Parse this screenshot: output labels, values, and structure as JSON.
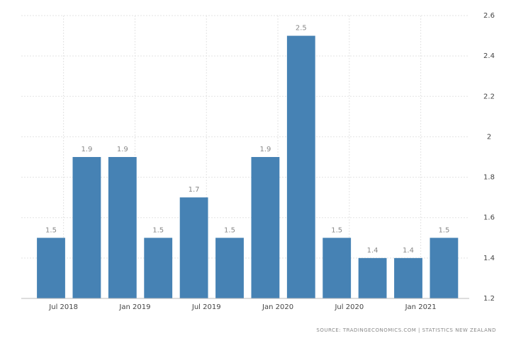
{
  "chart_data": {
    "type": "bar",
    "categories": [
      null,
      null,
      null,
      null,
      null,
      null,
      null,
      null,
      null,
      null,
      null,
      null
    ],
    "values": [
      1.5,
      1.9,
      1.9,
      1.5,
      1.7,
      1.5,
      1.9,
      2.5,
      1.5,
      1.4,
      1.4,
      1.5
    ],
    "color": "#4682b4",
    "x_labels": [
      "Jul 2018",
      "Jan 2019",
      "Jul 2019",
      "Jan 2020",
      "Jul 2020",
      "Jan 2021"
    ],
    "ylim": [
      1.2,
      2.6
    ],
    "yticks": [
      1.2,
      1.4,
      1.6,
      1.8,
      2,
      2.2,
      2.4,
      2.6
    ],
    "grid": true,
    "source": "SOURCE: TRADINGECONOMICS.COM | STATISTICS NEW ZEALAND"
  }
}
